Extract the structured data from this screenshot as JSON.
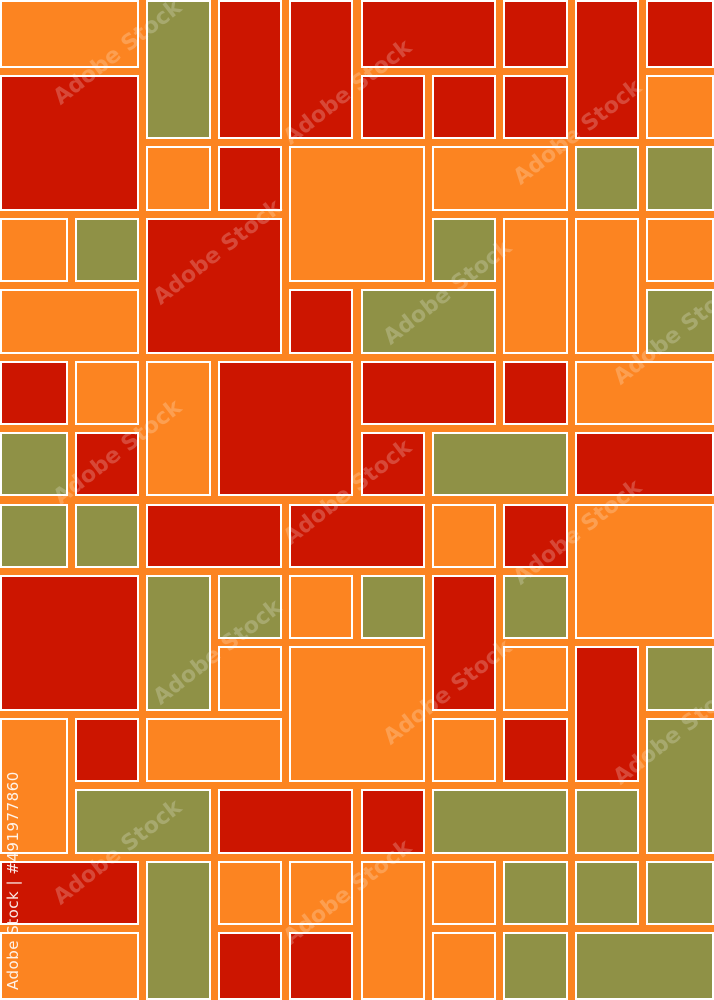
{
  "palette": {
    "background": "#fc8421",
    "border": "#ffffff",
    "orange": "#fc8421",
    "red": "#cc1500",
    "olive": "#8f9146"
  },
  "watermark": {
    "brand": "Adobe Stock",
    "id_text": "Adobe Stock | #491977860"
  }
}
